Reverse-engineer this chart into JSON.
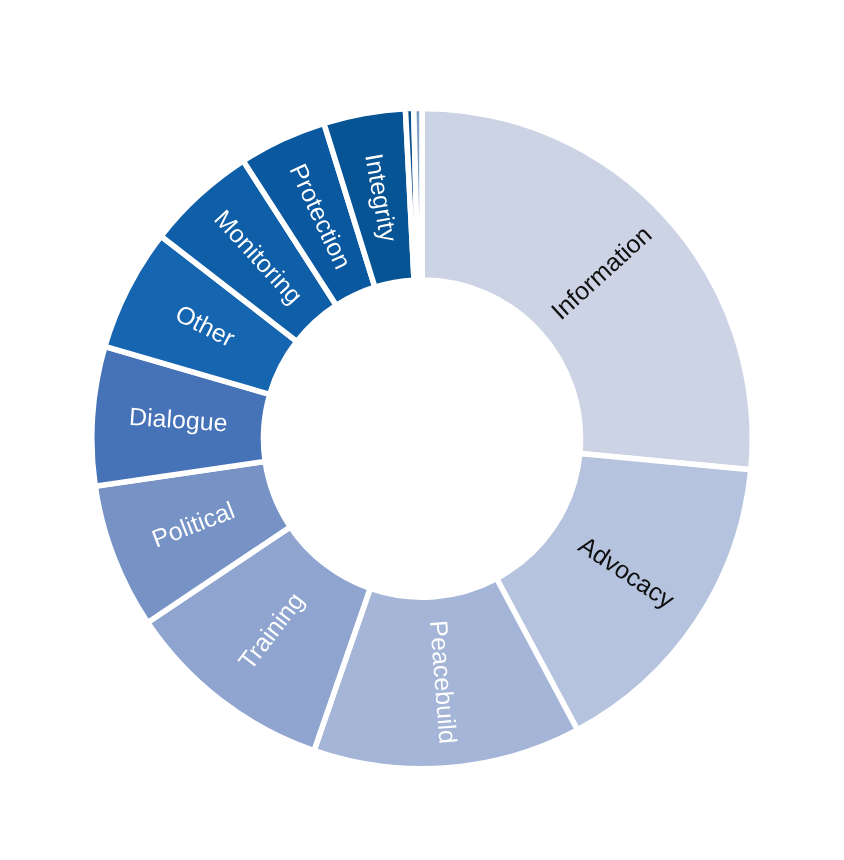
{
  "chart_data": {
    "type": "donut",
    "categories": [
      "Information",
      "Advocacy",
      "Peacebuild",
      "Training",
      "Political",
      "Dialogue",
      "Other",
      "Monitoring",
      "Protection",
      "Integrity",
      null,
      null
    ],
    "values": [
      26.5,
      15.7,
      13.1,
      10.3,
      7.1,
      6.8,
      6.0,
      5.4,
      4.3,
      4.0,
      0.4,
      0.4
    ],
    "colors": [
      "#ccd3e5",
      "#b5c3de",
      "#a4b5d8",
      "#8fa5cf",
      "#7793c6",
      "#4672b8",
      "#1565b0",
      "#0e5ea8",
      "#0a58a0",
      "#075495",
      "#0a4f8c",
      "#7d9fc5"
    ]
  }
}
